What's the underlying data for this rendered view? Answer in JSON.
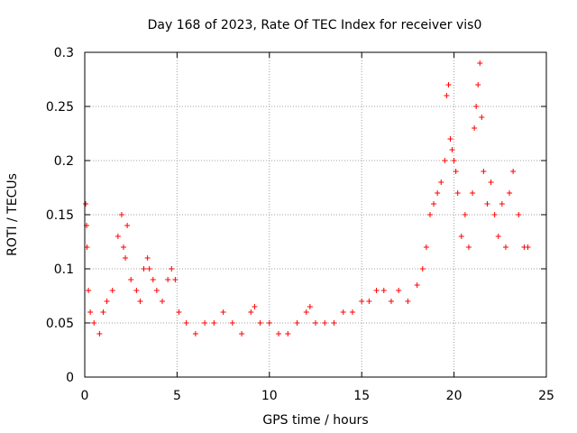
{
  "chart_data": {
    "type": "scatter",
    "title": "Day 168 of 2023, Rate Of TEC Index for receiver vis0",
    "xlabel": "GPS time / hours",
    "ylabel": "ROTI / TECUs",
    "xlim": [
      0,
      25
    ],
    "ylim": [
      0,
      0.3
    ],
    "x_ticks": [
      0,
      5,
      10,
      15,
      20,
      25
    ],
    "x_tick_labels": [
      "0",
      "5",
      "10",
      "15",
      "20",
      "25"
    ],
    "y_ticks": [
      0,
      0.05,
      0.1,
      0.15,
      0.2,
      0.25,
      0.3
    ],
    "y_tick_labels": [
      "0",
      "0.05",
      "0.1",
      "0.15",
      "0.2",
      "0.25",
      "0.3"
    ],
    "grid": true,
    "marker": "+",
    "color": "#ff0000",
    "series": [
      {
        "x": [
          0.05,
          0.1,
          0.12,
          0.2,
          0.3,
          0.5,
          0.8,
          1.0,
          1.2,
          1.5,
          1.8,
          2.0,
          2.1,
          2.2,
          2.3,
          2.5,
          2.8,
          3.0,
          3.2,
          3.4,
          3.5,
          3.7,
          3.9,
          4.2,
          4.5,
          4.7,
          4.9,
          5.1,
          5.5,
          6.0,
          6.5,
          7.0,
          7.5,
          8.0,
          8.5,
          9.0,
          9.2,
          9.5,
          10.0,
          10.5,
          11.0,
          11.5,
          12.0,
          12.2,
          12.5,
          13.0,
          13.5,
          14.0,
          14.5,
          15.0,
          15.4,
          15.8,
          16.2,
          16.6,
          17.0,
          17.5,
          18.0,
          18.3,
          18.5,
          18.7,
          18.9,
          19.1,
          19.3,
          19.5,
          19.6,
          19.7,
          19.8,
          19.9,
          20.0,
          20.1,
          20.2,
          20.4,
          20.6,
          20.8,
          21.0,
          21.1,
          21.2,
          21.3,
          21.4,
          21.5,
          21.6,
          21.8,
          22.0,
          22.2,
          22.4,
          22.6,
          22.8,
          23.0,
          23.2,
          23.5,
          23.8,
          24.0
        ],
        "y": [
          0.16,
          0.14,
          0.12,
          0.08,
          0.06,
          0.05,
          0.04,
          0.06,
          0.07,
          0.08,
          0.13,
          0.15,
          0.12,
          0.11,
          0.14,
          0.09,
          0.08,
          0.07,
          0.1,
          0.11,
          0.1,
          0.09,
          0.08,
          0.07,
          0.09,
          0.1,
          0.09,
          0.06,
          0.05,
          0.04,
          0.05,
          0.05,
          0.06,
          0.05,
          0.04,
          0.06,
          0.065,
          0.05,
          0.05,
          0.04,
          0.04,
          0.05,
          0.06,
          0.065,
          0.05,
          0.05,
          0.05,
          0.06,
          0.06,
          0.07,
          0.07,
          0.08,
          0.08,
          0.07,
          0.08,
          0.07,
          0.085,
          0.1,
          0.12,
          0.15,
          0.16,
          0.17,
          0.18,
          0.2,
          0.26,
          0.27,
          0.22,
          0.21,
          0.2,
          0.19,
          0.17,
          0.13,
          0.15,
          0.12,
          0.17,
          0.23,
          0.25,
          0.27,
          0.29,
          0.24,
          0.19,
          0.16,
          0.18,
          0.15,
          0.13,
          0.16,
          0.12,
          0.17,
          0.19,
          0.15,
          0.12,
          0.12
        ]
      }
    ]
  }
}
